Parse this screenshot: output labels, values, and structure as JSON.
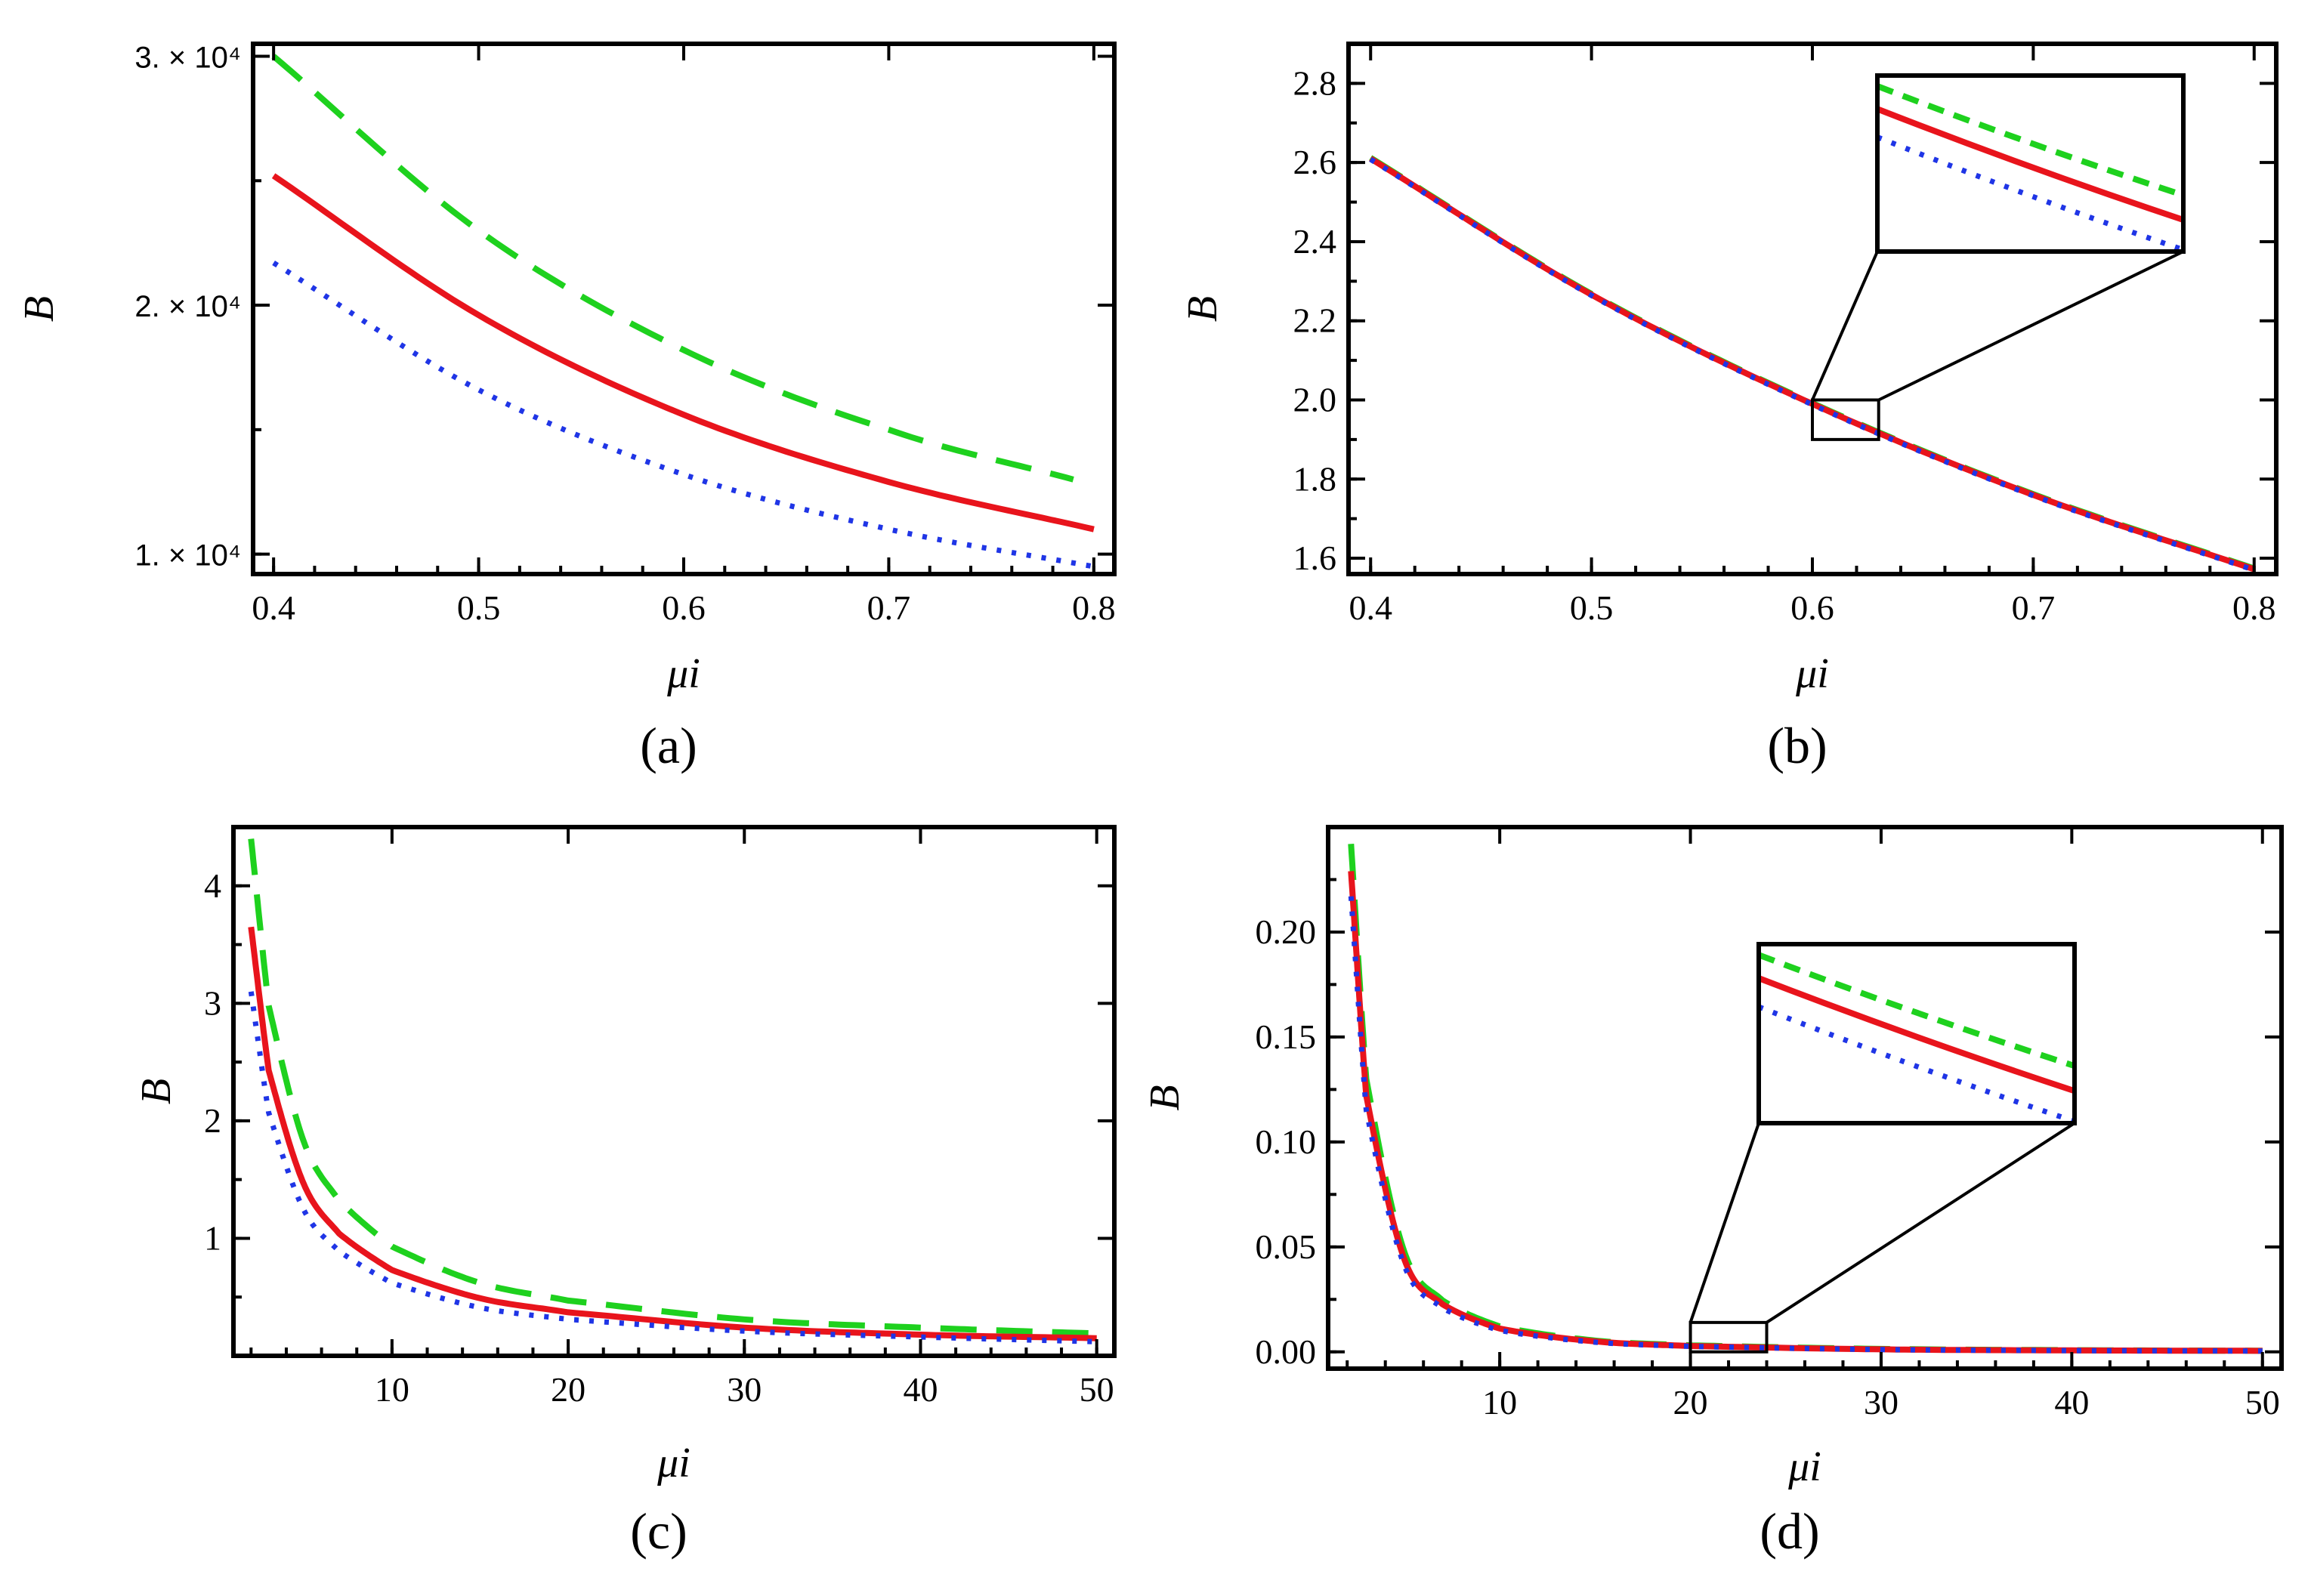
{
  "colors": {
    "solid": "#e8141c",
    "dashed": "#1ed11e",
    "dotted": "#1f35e6",
    "axis": "#000000"
  },
  "chart_data": [
    {
      "panel": "(a)",
      "type": "line",
      "xlabel": "μi",
      "ylabel": "B",
      "xlim": [
        0.39,
        0.81
      ],
      "ylim": [
        9200,
        30500
      ],
      "xticks": [
        0.4,
        0.5,
        0.6,
        0.7,
        0.8
      ],
      "xtick_labels": [
        "0.4",
        "0.5",
        "0.6",
        "0.7",
        "0.8"
      ],
      "yticks": [
        10000,
        20000,
        30000
      ],
      "ytick_labels": [
        "1. × 10⁴",
        "2. × 10⁴",
        "3. × 10⁴"
      ],
      "series": [
        {
          "name": "dashed",
          "style": "dashed",
          "x": [
            0.4,
            0.5,
            0.6,
            0.7,
            0.79
          ],
          "y": [
            30000,
            23000,
            18200,
            15000,
            13000
          ]
        },
        {
          "name": "solid",
          "style": "solid",
          "x": [
            0.4,
            0.5,
            0.6,
            0.7,
            0.8
          ],
          "y": [
            25200,
            19600,
            15600,
            12900,
            11000
          ]
        },
        {
          "name": "dotted",
          "style": "dotted",
          "x": [
            0.4,
            0.5,
            0.6,
            0.7,
            0.8
          ],
          "y": [
            21700,
            16600,
            13200,
            11000,
            9500
          ]
        }
      ]
    },
    {
      "panel": "(b)",
      "type": "line",
      "xlabel": "μi",
      "ylabel": "B",
      "xlim": [
        0.39,
        0.81
      ],
      "ylim": [
        1.56,
        2.9
      ],
      "xticks": [
        0.4,
        0.5,
        0.6,
        0.7,
        0.8
      ],
      "xtick_labels": [
        "0.4",
        "0.5",
        "0.6",
        "0.7",
        "0.8"
      ],
      "yticks": [
        1.6,
        1.8,
        2.0,
        2.2,
        2.4,
        2.6,
        2.8
      ],
      "ytick_labels": [
        "1.6",
        "1.8",
        "2.0",
        "2.2",
        "2.4",
        "2.6",
        "2.8"
      ],
      "zoom_box": {
        "x": [
          0.6,
          0.63
        ],
        "y": [
          1.9,
          2.0
        ]
      },
      "series": [
        {
          "name": "dashed",
          "style": "dashed",
          "x": [
            0.4,
            0.5,
            0.6,
            0.7,
            0.8
          ],
          "y": [
            2.612,
            2.268,
            1.992,
            1.762,
            1.574
          ]
        },
        {
          "name": "solid",
          "style": "solid",
          "x": [
            0.4,
            0.5,
            0.6,
            0.7,
            0.8
          ],
          "y": [
            2.61,
            2.266,
            1.99,
            1.76,
            1.572
          ]
        },
        {
          "name": "dotted",
          "style": "dotted",
          "x": [
            0.4,
            0.5,
            0.6,
            0.7,
            0.8
          ],
          "y": [
            2.608,
            2.264,
            1.988,
            1.758,
            1.57
          ]
        }
      ]
    },
    {
      "panel": "(c)",
      "type": "line",
      "xlabel": "μi",
      "ylabel": "B",
      "xlim": [
        1,
        51
      ],
      "ylim": [
        0,
        4.5
      ],
      "xticks": [
        10,
        20,
        30,
        40,
        50
      ],
      "xtick_labels": [
        "10",
        "20",
        "30",
        "40",
        "50"
      ],
      "yticks": [
        1,
        2,
        3,
        4
      ],
      "ytick_labels": [
        "1",
        "2",
        "3",
        "4"
      ],
      "series": [
        {
          "name": "dashed",
          "style": "dashed",
          "x": [
            2,
            3,
            5,
            7,
            10,
            15,
            20,
            30,
            40,
            50
          ],
          "y": [
            4.4,
            2.98,
            1.82,
            1.32,
            0.93,
            0.62,
            0.47,
            0.31,
            0.24,
            0.19
          ]
        },
        {
          "name": "solid",
          "style": "solid",
          "x": [
            2,
            3,
            5,
            7,
            10,
            15,
            20,
            30,
            40,
            50
          ],
          "y": [
            3.65,
            2.43,
            1.46,
            1.04,
            0.73,
            0.49,
            0.37,
            0.24,
            0.18,
            0.15
          ]
        },
        {
          "name": "dotted",
          "style": "dotted",
          "x": [
            2,
            3,
            5,
            7,
            10,
            15,
            20,
            30,
            40,
            50
          ],
          "y": [
            3.1,
            2.07,
            1.24,
            0.89,
            0.62,
            0.41,
            0.31,
            0.21,
            0.16,
            0.12
          ]
        }
      ]
    },
    {
      "panel": "(d)",
      "type": "line",
      "xlabel": "μi",
      "ylabel": "B",
      "xlim": [
        1,
        51
      ],
      "ylim": [
        -0.008,
        0.25
      ],
      "xticks": [
        10,
        20,
        30,
        40,
        50
      ],
      "xtick_labels": [
        "10",
        "20",
        "30",
        "40",
        "50"
      ],
      "yticks": [
        0.0,
        0.05,
        0.1,
        0.15,
        0.2
      ],
      "ytick_labels": [
        "0.00",
        "0.05",
        "0.10",
        "0.15",
        "0.20"
      ],
      "zoom_box": {
        "x": [
          20,
          24
        ],
        "y": [
          0.0,
          0.014
        ]
      },
      "series": [
        {
          "name": "dashed",
          "style": "dashed",
          "x": [
            2.2,
            3,
            5,
            7,
            10,
            15,
            20,
            30,
            40,
            50
          ],
          "y": [
            0.242,
            0.13,
            0.0475,
            0.0245,
            0.0121,
            0.0054,
            0.0031,
            0.0014,
            0.0008,
            0.0005
          ]
        },
        {
          "name": "solid",
          "style": "solid",
          "x": [
            2.2,
            3,
            5,
            7,
            10,
            15,
            20,
            30,
            40,
            50
          ],
          "y": [
            0.229,
            0.122,
            0.044,
            0.0227,
            0.0111,
            0.005,
            0.0028,
            0.0012,
            0.0007,
            0.0005
          ]
        },
        {
          "name": "dotted",
          "style": "dotted",
          "x": [
            2.2,
            3,
            5,
            7,
            10,
            15,
            20,
            30,
            40,
            50
          ],
          "y": [
            0.217,
            0.115,
            0.041,
            0.0209,
            0.0102,
            0.0046,
            0.0026,
            0.0011,
            0.0006,
            0.0004
          ]
        }
      ]
    }
  ]
}
